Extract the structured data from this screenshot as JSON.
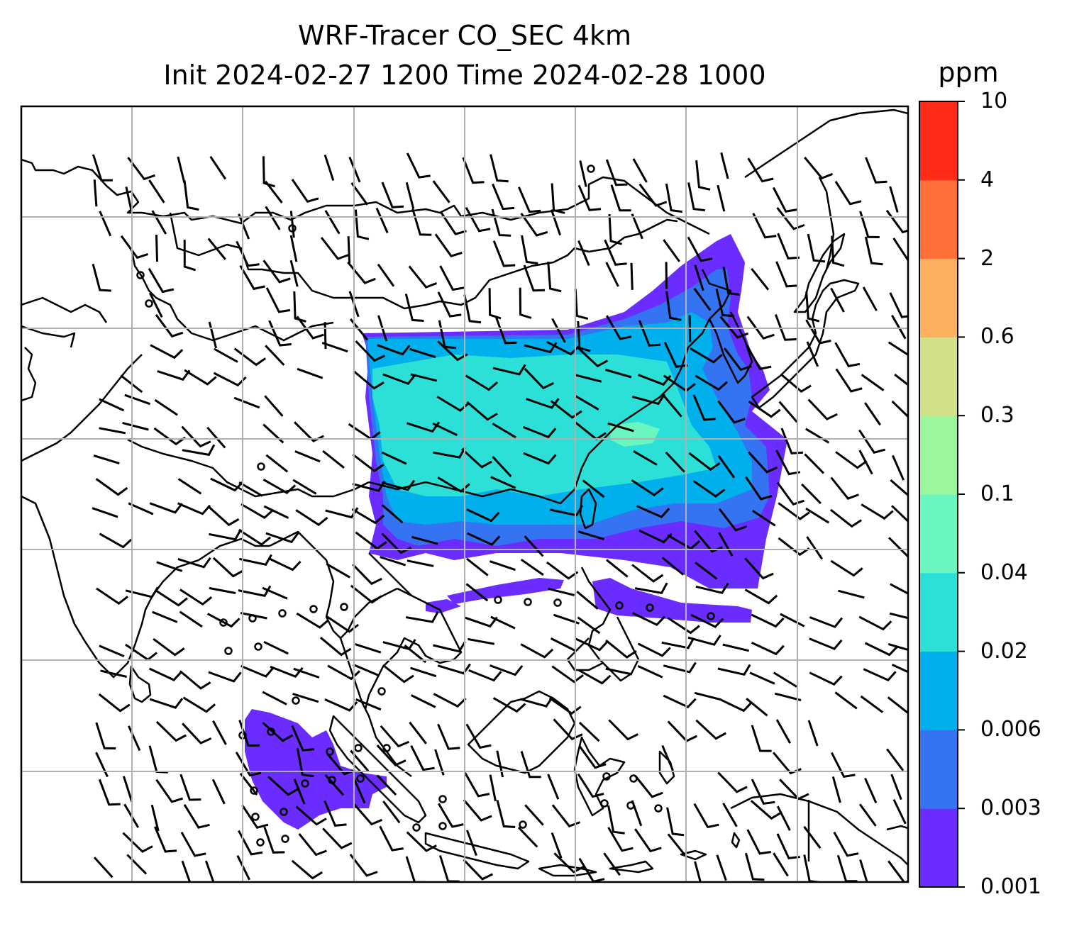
{
  "title": {
    "line1": "WRF-Tracer CO_SEC 4km",
    "line2": "Init 2024-02-27 1200 Time 2024-02-28 1000"
  },
  "colorbar": {
    "unit": "ppm",
    "tick_labels": [
      "0.001",
      "0.003",
      "0.006",
      "0.02",
      "0.04",
      "0.1",
      "0.3",
      "0.6",
      "2",
      "4",
      "10"
    ],
    "colors": [
      "#6a2cff",
      "#3473f2",
      "#00b0ec",
      "#2ce0d8",
      "#6af7bf",
      "#9af79e",
      "#d2e088",
      "#fdb060",
      "#ff7038",
      "#ff2a18"
    ]
  },
  "map": {
    "gridlines": true,
    "plume_colors": {
      "low": "#6a2cff",
      "mid": "#3473f2",
      "high": "#00b0ec",
      "higher": "#2ce0d8",
      "peak": "#6af7bf"
    }
  }
}
